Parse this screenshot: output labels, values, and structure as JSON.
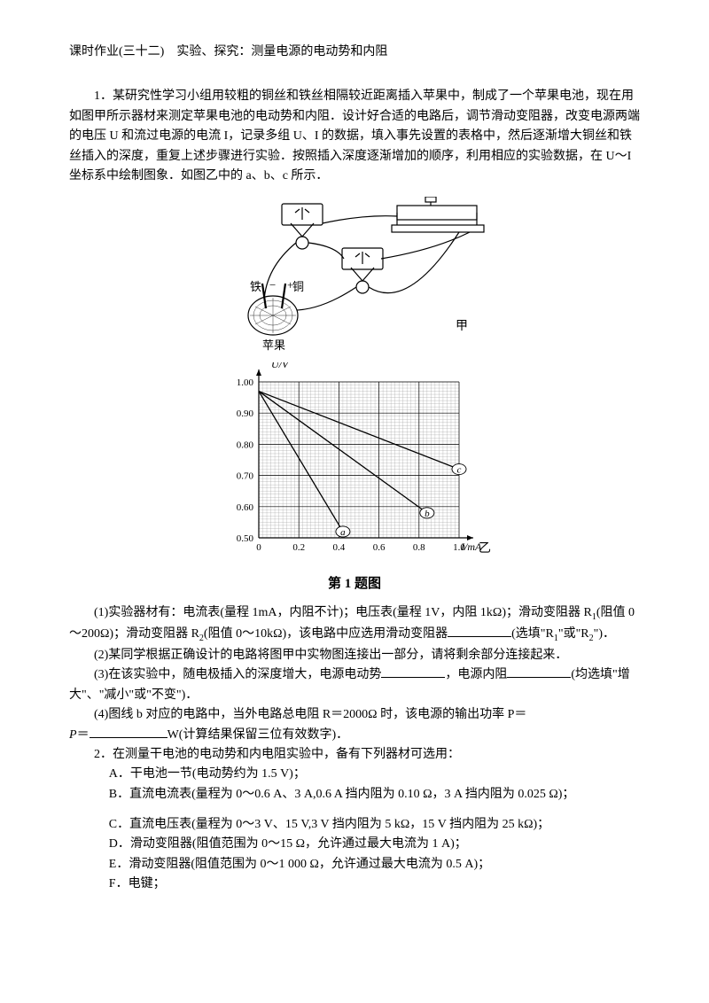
{
  "title": "课时作业(三十二)　实验、探究：测量电源的电动势和内阻",
  "q1": {
    "intro": "1．某研究性学习小组用较粗的铜丝和铁丝相隔较近距离插入苹果中，制成了一个苹果电池，现在用如图甲所示器材来测定苹果电池的电动势和内阻．设计好合适的电路后，调节滑动变阻器，改变电源两端的电压 U 和流过电源的电流 I，记录多组 U、I 的数据，填入事先设置的表格中，然后逐渐增大铜丝和铁丝插入的深度，重复上述步骤进行实验．按照插入深度逐渐增加的顺序，利用相应的实验数据，在 U～I 坐标系中绘制图象．如图乙中的 a、b、c 所示．",
    "circuit": {
      "labels": {
        "iron": "铁",
        "copper": "铜",
        "apple": "苹果",
        "jia": "甲"
      },
      "line_color": "#000000"
    },
    "graph": {
      "y_label": "U/V",
      "x_label": "I/mA",
      "yi": "乙",
      "y_ticks": [
        "0.50",
        "0.60",
        "0.70",
        "0.80",
        "0.90",
        "1.00"
      ],
      "x_ticks": [
        "0",
        "0.2",
        "0.4",
        "0.6",
        "0.8",
        "1.0"
      ],
      "grid_major": "#000000",
      "grid_minor": "#9a9a9a",
      "series": {
        "a": {
          "label": "a",
          "points": [
            [
              0.0,
              0.97
            ],
            [
              0.42,
              0.52
            ]
          ]
        },
        "b": {
          "label": "b",
          "points": [
            [
              0.0,
              0.97
            ],
            [
              0.84,
              0.58
            ]
          ]
        },
        "c": {
          "label": "c",
          "points": [
            [
              0.0,
              0.97
            ],
            [
              1.0,
              0.72
            ]
          ]
        }
      },
      "line_width": 1.3
    },
    "caption": "第 1 题图",
    "p1a": "(1)实验器材有：电流表(量程 1mA，内阻不计)；电压表(量程 1V，内阻 1kΩ)；滑动变阻器 R",
    "p1b": "(阻值 0～200Ω)；滑动变阻器 R",
    "p1c": "(阻值 0～10kΩ)，该电路中应选用滑动变阻器",
    "p1d": "(选填\"R",
    "p1e": "\"或\"R",
    "p1f": "\")．",
    "p2": "(2)某同学根据正确设计的电路将图甲中实物图连接出一部分，请将剩余部分连接起来．",
    "p3a": "(3)在该实验中，随电极插入的深度增大，电源电动势",
    "p3b": "，电源内阻",
    "p3c": "(均选填\"增大\"、\"减小\"或\"不变\")．",
    "p4a": "(4)图线 b 对应的电路中，当外电路总电阻 R＝2000Ω 时，该电源的输出功率 P＝",
    "p4b": "W(计算结果保留三位有效数字)．"
  },
  "q2": {
    "intro": "2．在测量干电池的电动势和内电阻实验中，备有下列器材可选用：",
    "A": "A．干电池一节(电动势约为 1.5 V)；",
    "B": "B．直流电流表(量程为 0～0.6 A、3 A,0.6 A 挡内阻为 0.10 Ω，3 A 挡内阻为 0.025 Ω)；",
    "C": "C．直流电压表(量程为 0～3 V、15 V,3 V 挡内阻为 5 kΩ，15 V 挡内阻为 25 kΩ)；",
    "D": "D．滑动变阻器(阻值范围为 0～15 Ω，允许通过最大电流为 1 A)；",
    "E": "E．滑动变阻器(阻值范围为 0～1 000 Ω，允许通过最大电流为 0.5 A)；",
    "F": "F．电键；"
  }
}
